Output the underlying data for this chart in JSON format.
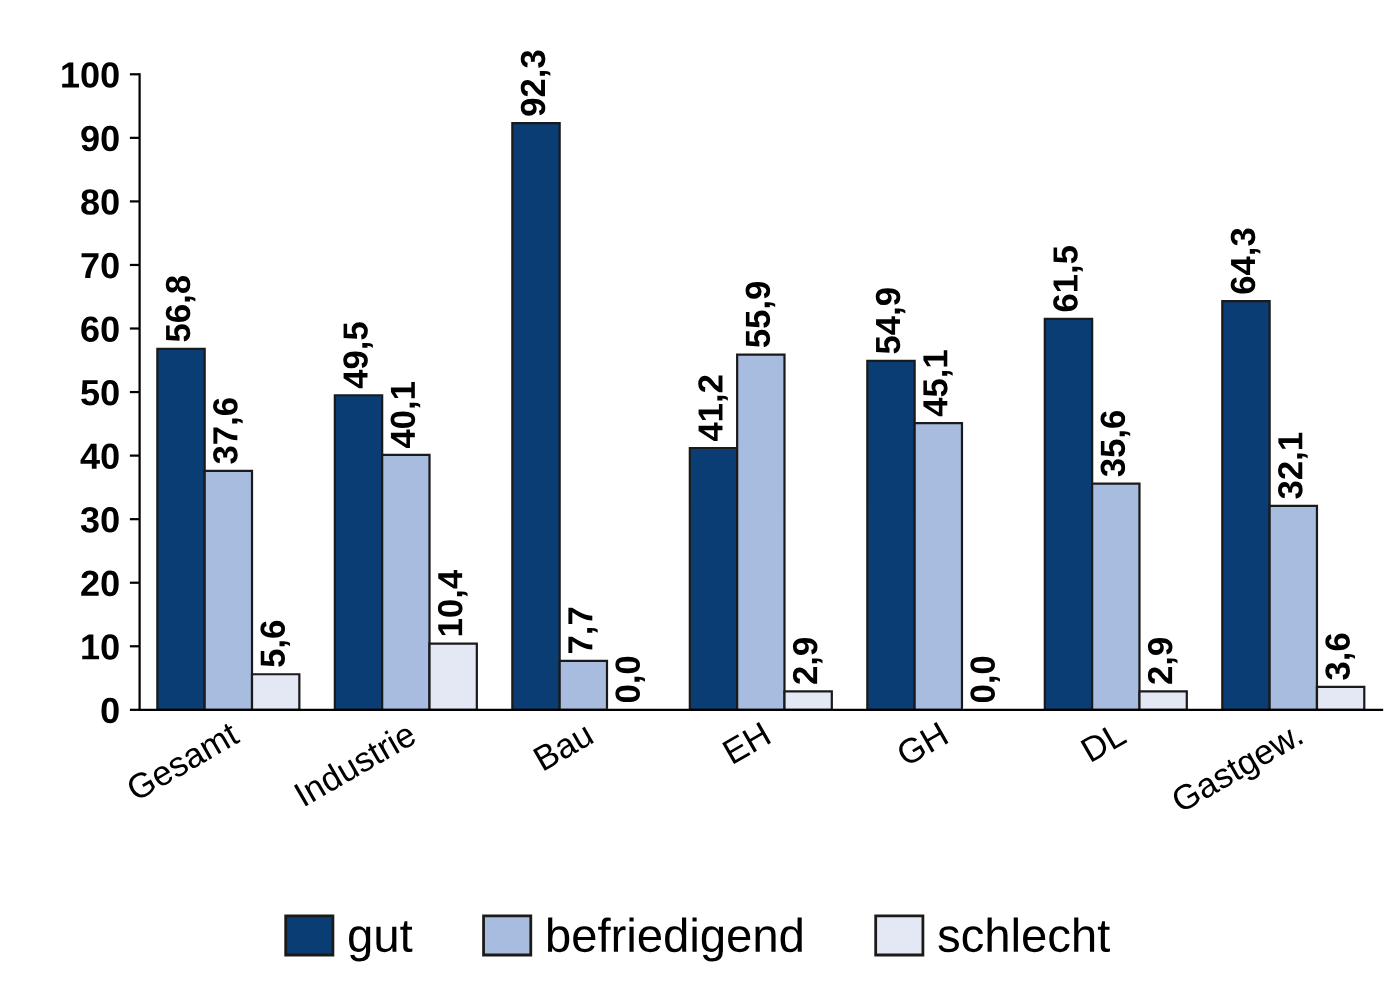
{
  "chart_data": {
    "type": "bar",
    "categories": [
      "Gesamt",
      "Industrie",
      "Bau",
      "EH",
      "GH",
      "DL",
      "Gastgew."
    ],
    "series": [
      {
        "name": "gut",
        "color": "#0b3d75",
        "values": [
          56.8,
          49.5,
          92.3,
          41.2,
          54.9,
          61.5,
          64.3
        ],
        "value_labels": [
          "56,8",
          "49,5",
          "92,3",
          "41,2",
          "54,9",
          "61,5",
          "64,3"
        ]
      },
      {
        "name": "befriedigend",
        "color": "#a8bce0",
        "values": [
          37.6,
          40.1,
          7.7,
          55.9,
          45.1,
          35.6,
          32.1
        ],
        "value_labels": [
          "37,6",
          "40,1",
          "7,7",
          "55,9",
          "45,1",
          "35,6",
          "32,1"
        ]
      },
      {
        "name": "schlecht",
        "color": "#e3e8f4",
        "values": [
          5.6,
          10.4,
          0.0,
          2.9,
          0.0,
          2.9,
          3.6
        ],
        "value_labels": [
          "5,6",
          "10,4",
          "0,0",
          "2,9",
          "0,0",
          "2,9",
          "3,6"
        ]
      }
    ],
    "ylim": [
      0,
      100
    ],
    "yticks": [
      0,
      10,
      20,
      30,
      40,
      50,
      60,
      70,
      80,
      90,
      100
    ],
    "grid": false,
    "legend": "bottom"
  }
}
